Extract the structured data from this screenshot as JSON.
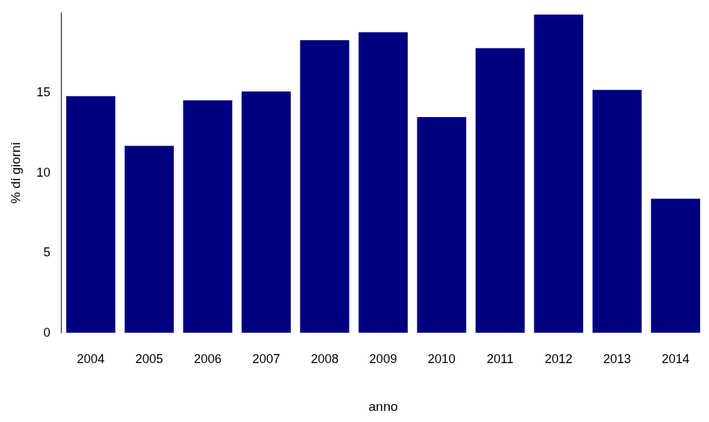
{
  "chart_data": {
    "type": "bar",
    "x_label": "anno",
    "y_label": "% di giorni",
    "categories": [
      "2004",
      "2005",
      "2006",
      "2007",
      "2008",
      "2009",
      "2010",
      "2011",
      "2012",
      "2013",
      "2014"
    ],
    "values": [
      14.8,
      11.7,
      14.55,
      15.1,
      18.3,
      18.8,
      13.5,
      17.8,
      19.9,
      15.2,
      8.4
    ],
    "color": "#000080",
    "ylim": [
      0,
      20
    ],
    "yticks": [
      0,
      5,
      10,
      15
    ],
    "grid": false
  }
}
